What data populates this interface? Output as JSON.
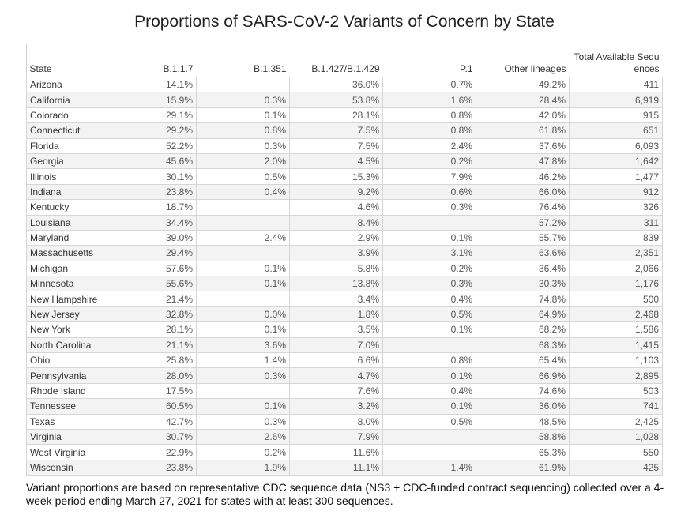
{
  "title": "Proportions of SARS-CoV-2 Variants of Concern by State",
  "chart_data": {
    "type": "table",
    "title": "Proportions of SARS-CoV-2 Variants of Concern by State",
    "columns": [
      "State",
      "B.1.1.7",
      "B.1.351",
      "B.1.427/B.1.429",
      "P.1",
      "Other lineages",
      "Total Available Sequ\nences"
    ],
    "rows": [
      [
        "Arizona",
        "14.1%",
        "",
        "36.0%",
        "0.7%",
        "49.2%",
        "411"
      ],
      [
        "California",
        "15.9%",
        "0.3%",
        "53.8%",
        "1.6%",
        "28.4%",
        "6,919"
      ],
      [
        "Colorado",
        "29.1%",
        "0.1%",
        "28.1%",
        "0.8%",
        "42.0%",
        "915"
      ],
      [
        "Connecticut",
        "29.2%",
        "0.8%",
        "7.5%",
        "0.8%",
        "61.8%",
        "651"
      ],
      [
        "Florida",
        "52.2%",
        "0.3%",
        "7.5%",
        "2.4%",
        "37.6%",
        "6,093"
      ],
      [
        "Georgia",
        "45.6%",
        "2.0%",
        "4.5%",
        "0.2%",
        "47.8%",
        "1,642"
      ],
      [
        "Illinois",
        "30.1%",
        "0.5%",
        "15.3%",
        "7.9%",
        "46.2%",
        "1,477"
      ],
      [
        "Indiana",
        "23.8%",
        "0.4%",
        "9.2%",
        "0.6%",
        "66.0%",
        "912"
      ],
      [
        "Kentucky",
        "18.7%",
        "",
        "4.6%",
        "0.3%",
        "76.4%",
        "326"
      ],
      [
        "Louisiana",
        "34.4%",
        "",
        "8.4%",
        "",
        "57.2%",
        "311"
      ],
      [
        "Maryland",
        "39.0%",
        "2.4%",
        "2.9%",
        "0.1%",
        "55.7%",
        "839"
      ],
      [
        "Massachusetts",
        "29.4%",
        "",
        "3.9%",
        "3.1%",
        "63.6%",
        "2,351"
      ],
      [
        "Michigan",
        "57.6%",
        "0.1%",
        "5.8%",
        "0.2%",
        "36.4%",
        "2,066"
      ],
      [
        "Minnesota",
        "55.6%",
        "0.1%",
        "13.8%",
        "0.3%",
        "30.3%",
        "1,176"
      ],
      [
        "New Hampshire",
        "21.4%",
        "",
        "3.4%",
        "0.4%",
        "74.8%",
        "500"
      ],
      [
        "New Jersey",
        "32.8%",
        "0.0%",
        "1.8%",
        "0.5%",
        "64.9%",
        "2,468"
      ],
      [
        "New York",
        "28.1%",
        "0.1%",
        "3.5%",
        "0.1%",
        "68.2%",
        "1,586"
      ],
      [
        "North Carolina",
        "21.1%",
        "3.6%",
        "7.0%",
        "",
        "68.3%",
        "1,415"
      ],
      [
        "Ohio",
        "25.8%",
        "1.4%",
        "6.6%",
        "0.8%",
        "65.4%",
        "1,103"
      ],
      [
        "Pennsylvania",
        "28.0%",
        "0.3%",
        "4.7%",
        "0.1%",
        "66.9%",
        "2,895"
      ],
      [
        "Rhode Island",
        "17.5%",
        "",
        "7.6%",
        "0.4%",
        "74.6%",
        "503"
      ],
      [
        "Tennessee",
        "60.5%",
        "0.1%",
        "3.2%",
        "0.1%",
        "36.0%",
        "741"
      ],
      [
        "Texas",
        "42.7%",
        "0.3%",
        "8.0%",
        "0.5%",
        "48.5%",
        "2,425"
      ],
      [
        "Virginia",
        "30.7%",
        "2.6%",
        "7.9%",
        "",
        "58.8%",
        "1,028"
      ],
      [
        "West Virginia",
        "22.9%",
        "0.2%",
        "11.6%",
        "",
        "65.3%",
        "550"
      ],
      [
        "Wisconsin",
        "23.8%",
        "1.9%",
        "11.1%",
        "1.4%",
        "61.9%",
        "425"
      ]
    ],
    "colors": {
      "alt_row": "#f3f3f3",
      "grid": "#d6d6d6"
    }
  },
  "footer": "Variant proportions are based on representative CDC sequence data (NS3 + CDC-funded contract sequencing) collected over a 4-week period ending March 27, 2021 for states with at least 300 sequences."
}
